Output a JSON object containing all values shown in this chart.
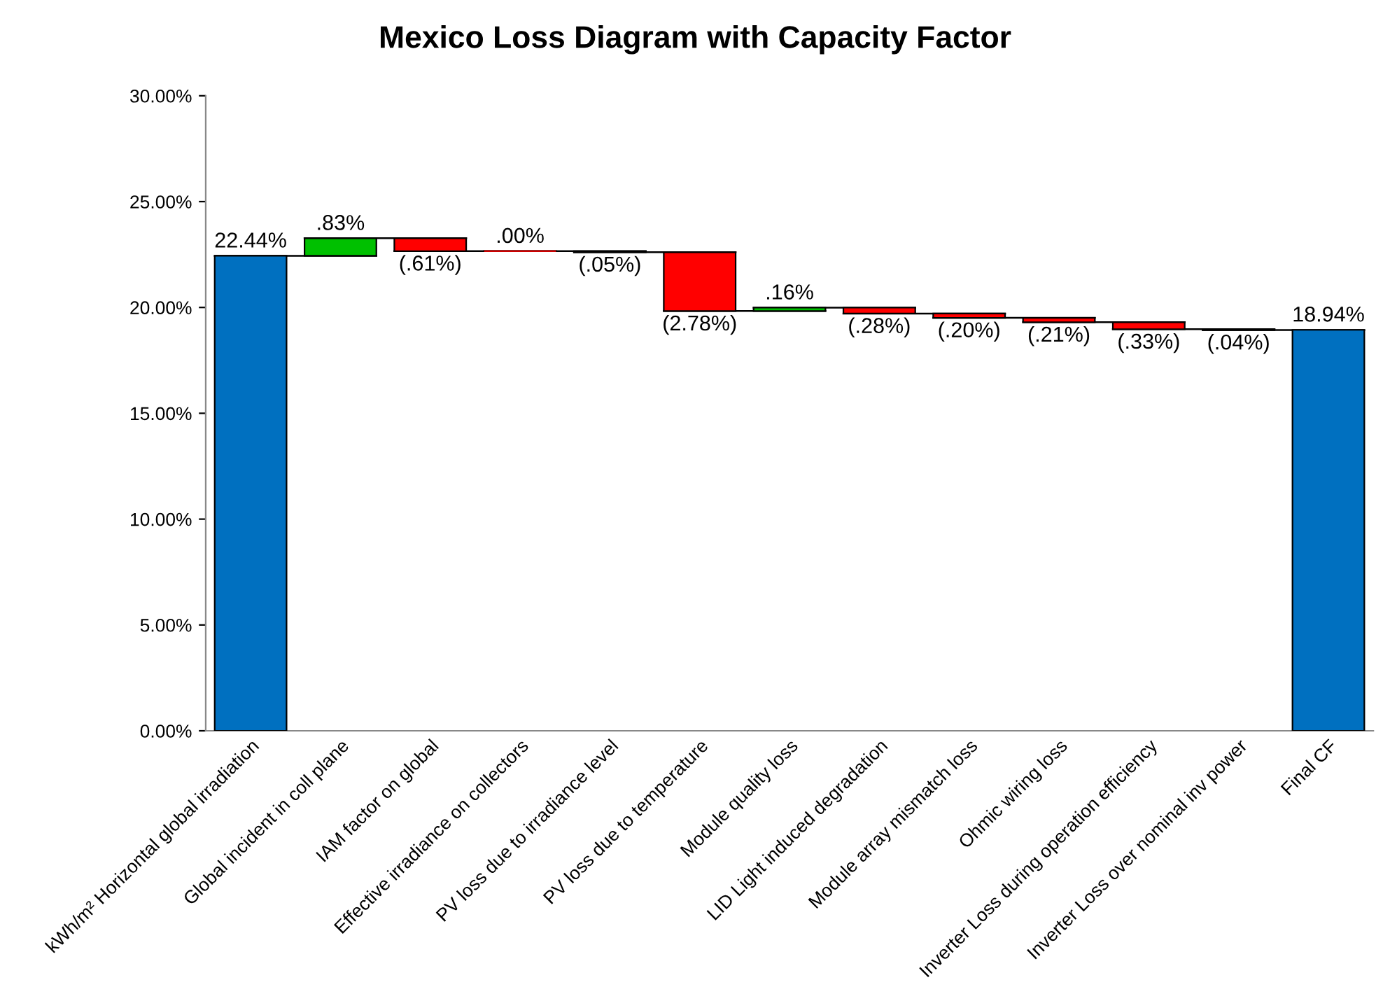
{
  "chart_data": {
    "type": "bar",
    "title": "Mexico Loss Diagram with Capacity Factor",
    "categories": [
      "kWh/m² Horizontal global irradiation",
      "Global incident in coll plane",
      "IAM factor on global",
      "Effective irradiance on collectors",
      "PV loss due to irradiance level",
      "PV loss due to temperature",
      "Module quality loss",
      "LID Light induced degradation",
      "Module array mismatch loss",
      "Ohmic wiring loss",
      "Inverter Loss during operation efficiency",
      "Inverter Loss over nominal inv power",
      "Final CF"
    ],
    "values": [
      22.44,
      0.83,
      -0.61,
      0.0,
      -0.05,
      -2.78,
      0.16,
      -0.28,
      -0.2,
      -0.21,
      -0.33,
      -0.04,
      18.94
    ],
    "base": [
      0,
      22.44,
      23.27,
      22.66,
      22.66,
      22.61,
      19.83,
      19.99,
      19.71,
      19.51,
      19.3,
      18.97,
      0
    ],
    "colors": [
      "#0070c0",
      "#00c000",
      "#ff0000",
      "#ff0000",
      "#ff0000",
      "#ff0000",
      "#00c000",
      "#ff0000",
      "#ff0000",
      "#ff0000",
      "#ff0000",
      "#ff0000",
      "#0070c0"
    ],
    "value_labels": [
      "22.44%",
      ".83%",
      "(.61%)",
      ".00%",
      "(.05%)",
      "(2.78%)",
      ".16%",
      "(.28%)",
      "(.20%)",
      "(.21%)",
      "(.33%)",
      "(.04%)",
      "18.94%"
    ],
    "ylim": [
      0,
      30
    ],
    "yticks": [
      {
        "value": 0,
        "label": "0.00%"
      },
      {
        "value": 5,
        "label": "5.00%"
      },
      {
        "value": 10,
        "label": "10.00%"
      },
      {
        "value": 15,
        "label": "15.00%"
      },
      {
        "value": 20,
        "label": "20.00%"
      },
      {
        "value": 25,
        "label": "25.00%"
      },
      {
        "value": 30,
        "label": "30.00%"
      }
    ],
    "grid": false,
    "legend": false
  }
}
